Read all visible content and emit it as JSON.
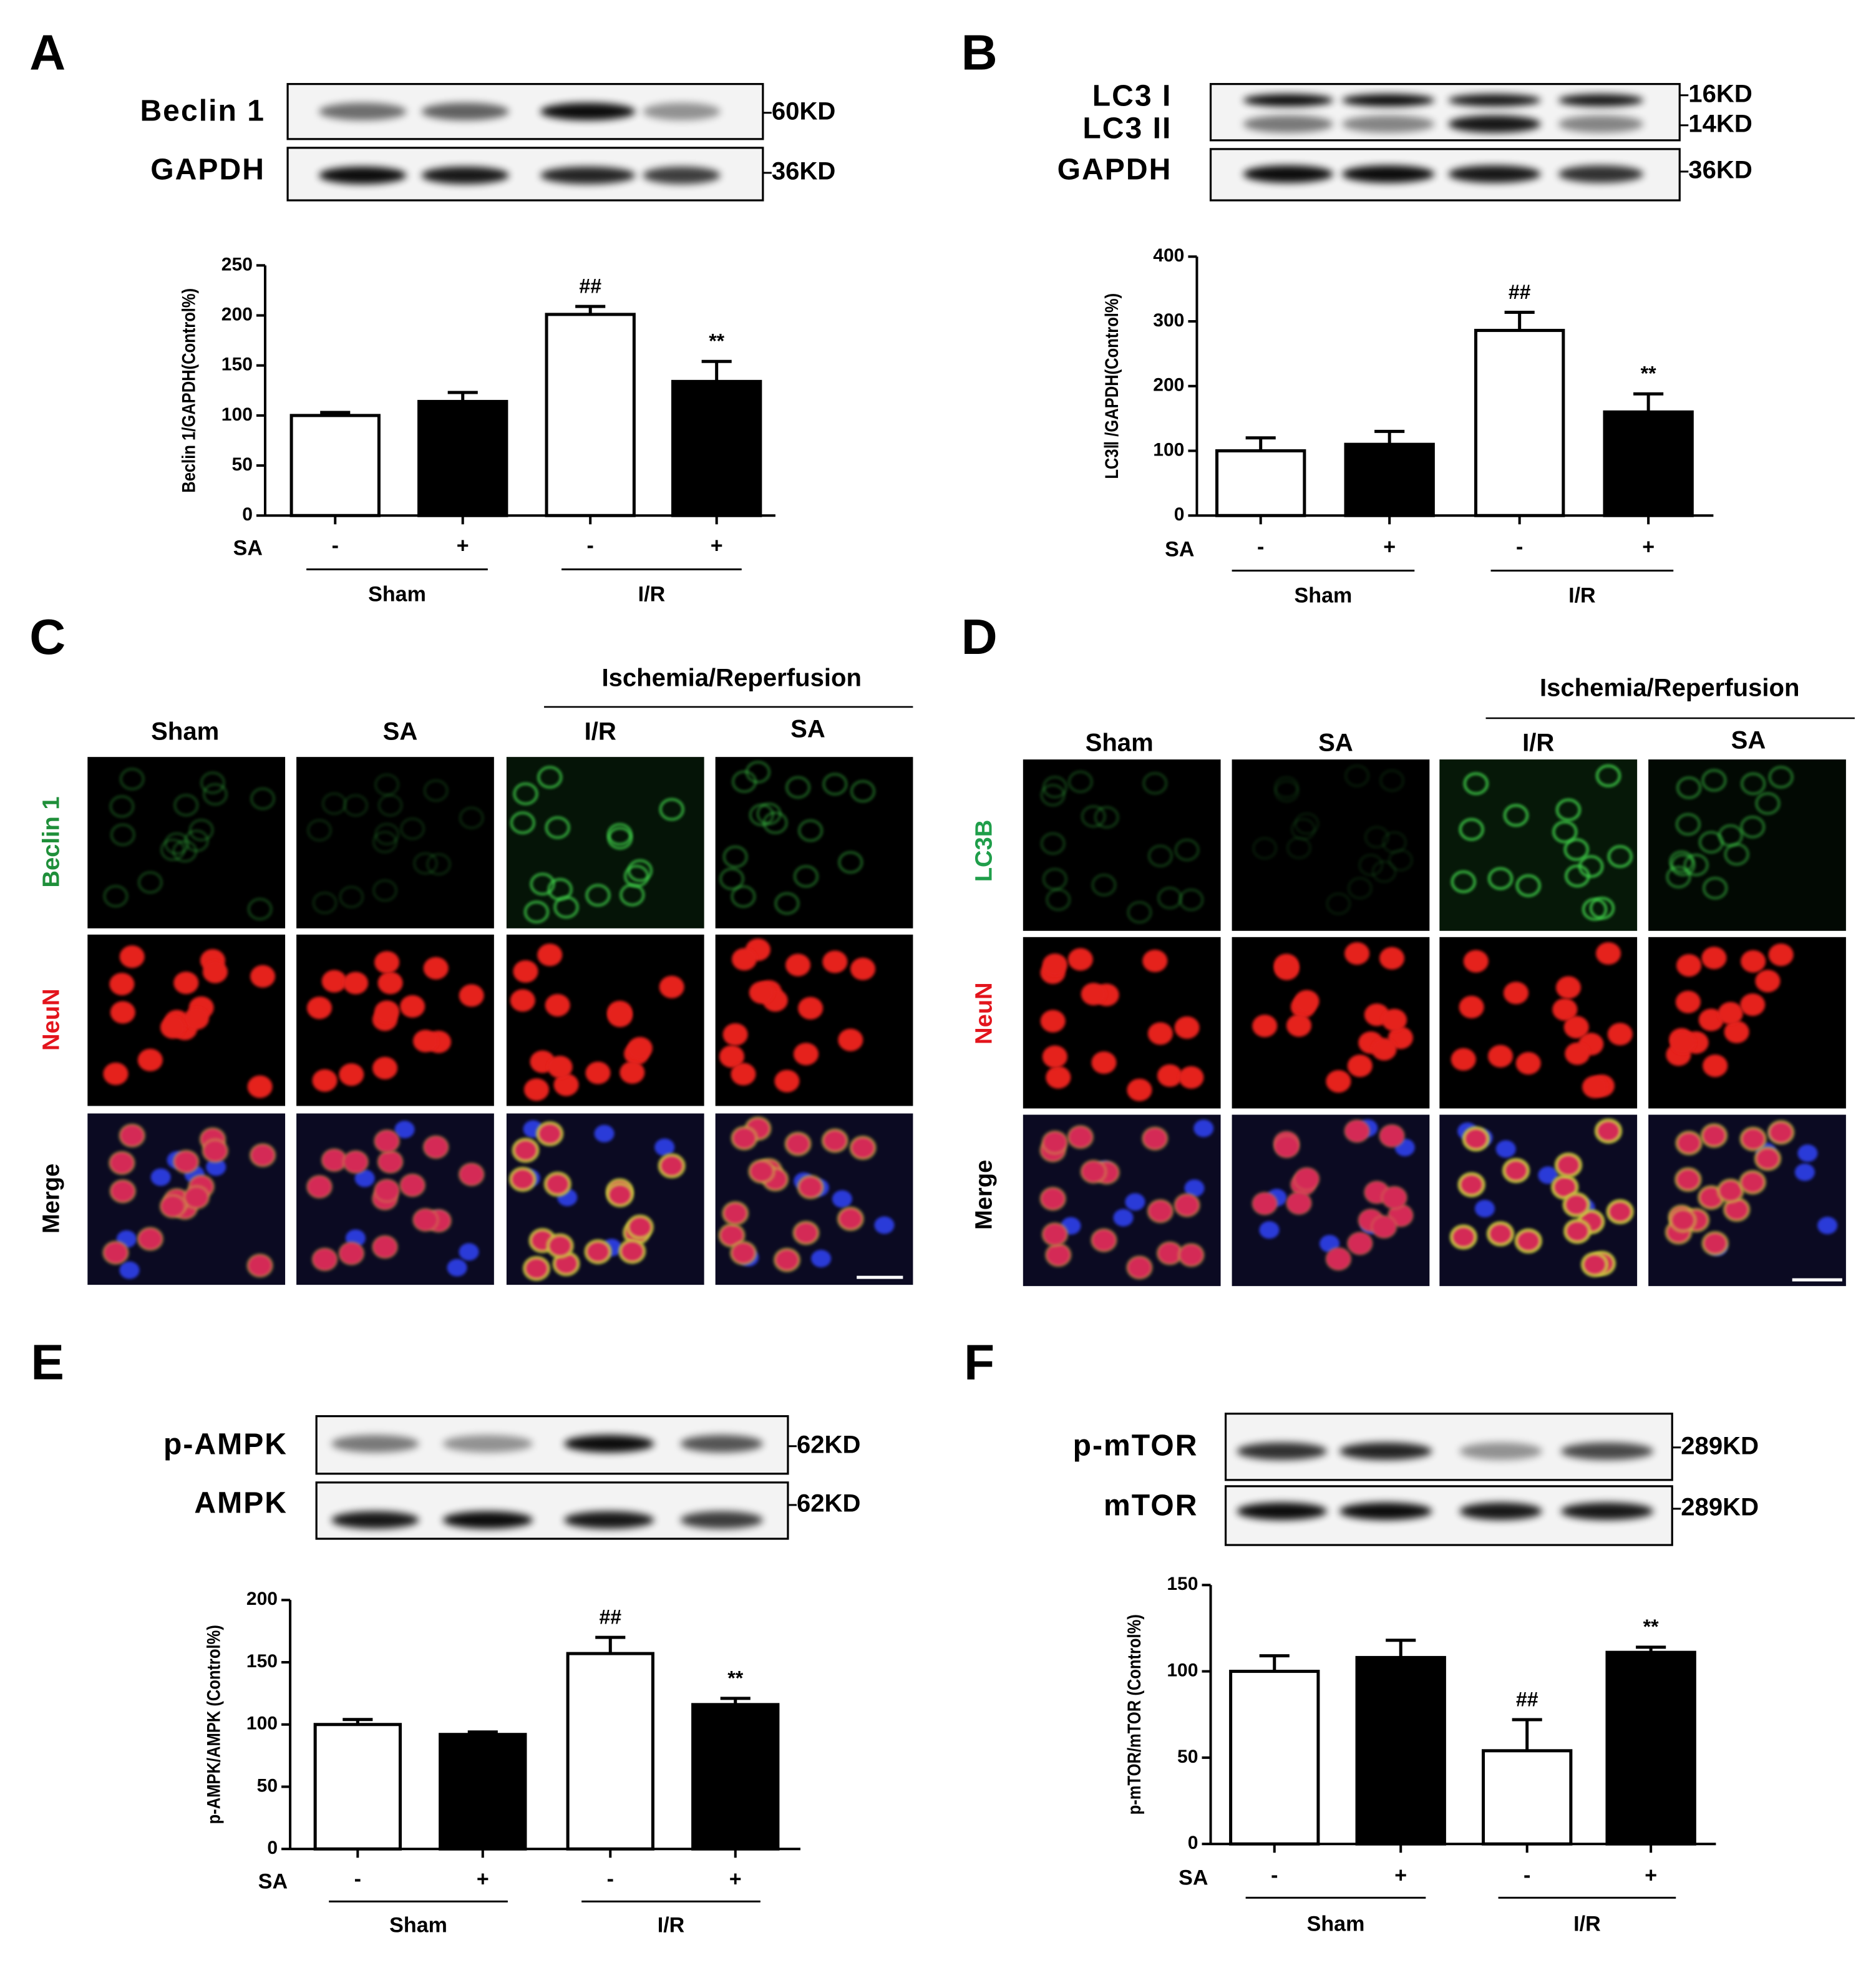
{
  "panels": [
    {
      "letter": "A",
      "blot": {
        "rows": [
          {
            "labels": [
              "Beclin 1"
            ],
            "markers": [
              "60KD"
            ]
          },
          {
            "labels": [
              "GAPDH"
            ],
            "markers": [
              "36KD"
            ]
          }
        ]
      }
    },
    {
      "letter": "B",
      "blot": {
        "rows": [
          {
            "labels": [
              "LC3 I",
              "LC3 II"
            ],
            "markers": [
              "16KD",
              "14KD"
            ]
          },
          {
            "labels": [
              "GAPDH"
            ],
            "markers": [
              "36KD"
            ]
          }
        ]
      }
    },
    {
      "letter": "C",
      "stain": {
        "header": "Ischemia/Reperfusion",
        "columns": [
          "Sham",
          "SA",
          "I/R",
          "SA"
        ],
        "rows": [
          "Beclin 1",
          "NeuN",
          "Merge"
        ],
        "row_colors": [
          "#1f8f3a",
          "#e3141c",
          "#000000"
        ]
      }
    },
    {
      "letter": "D",
      "stain": {
        "header": "Ischemia/Reperfusion",
        "columns": [
          "Sham",
          "SA",
          "I/R",
          "SA"
        ],
        "rows": [
          "LC3B",
          "NeuN",
          "Merge"
        ],
        "row_colors": [
          "#1f9e4a",
          "#e3141c",
          "#000000"
        ]
      }
    },
    {
      "letter": "E",
      "blot": {
        "rows": [
          {
            "labels": [
              "p-AMPK"
            ],
            "markers": [
              "62KD"
            ]
          },
          {
            "labels": [
              "AMPK"
            ],
            "markers": [
              "62KD"
            ]
          }
        ]
      }
    },
    {
      "letter": "F",
      "blot": {
        "rows": [
          {
            "labels": [
              "p-mTOR"
            ],
            "markers": [
              "289KD"
            ]
          },
          {
            "labels": [
              "mTOR"
            ],
            "markers": [
              "289KD"
            ]
          }
        ]
      }
    }
  ],
  "chart_data": [
    {
      "type": "bar",
      "y_label": "Beclin 1/GAPDH(Control%)",
      "x_label": "SA",
      "categories": [
        "-",
        "+",
        "-",
        "+"
      ],
      "groups": [
        "Sham",
        "I/R"
      ],
      "values": [
        100,
        114,
        201,
        134
      ],
      "errors": [
        3,
        9,
        8,
        20
      ],
      "value_annotations": [
        null,
        null,
        "##",
        "**"
      ],
      "colors": [
        "#ffffff",
        "#000000",
        "#ffffff",
        "#000000"
      ],
      "ylim": [
        0,
        250
      ],
      "yticks": [
        0,
        50,
        100,
        150,
        200,
        250
      ]
    },
    {
      "type": "bar",
      "y_label": "LC3Ⅱ /GAPDH(Control%)",
      "x_label": "SA",
      "categories": [
        "-",
        "+",
        "-",
        "+"
      ],
      "groups": [
        "Sham",
        "I/R"
      ],
      "values": [
        100,
        110,
        286,
        160
      ],
      "errors": [
        20,
        20,
        28,
        28
      ],
      "value_annotations": [
        null,
        null,
        "##",
        "**"
      ],
      "colors": [
        "#ffffff",
        "#000000",
        "#ffffff",
        "#000000"
      ],
      "ylim": [
        0,
        400
      ],
      "yticks": [
        0,
        100,
        200,
        300,
        400
      ]
    },
    {
      "type": "bar",
      "y_label": "p-AMPK/AMPK (Control%)",
      "x_label": "SA",
      "categories": [
        "-",
        "+",
        "-",
        "+"
      ],
      "groups": [
        "Sham",
        "I/R"
      ],
      "values": [
        100,
        92,
        157,
        116
      ],
      "errors": [
        4,
        2,
        13,
        5
      ],
      "value_annotations": [
        null,
        null,
        "##",
        "**"
      ],
      "colors": [
        "#ffffff",
        "#000000",
        "#ffffff",
        "#000000"
      ],
      "ylim": [
        0,
        200
      ],
      "yticks": [
        0,
        50,
        100,
        150,
        200
      ]
    },
    {
      "type": "bar",
      "y_label": "p-mTOR/mTOR (Control%)",
      "x_label": "SA",
      "categories": [
        "-",
        "+",
        "-",
        "+"
      ],
      "groups": [
        "Sham",
        "I/R"
      ],
      "values": [
        100,
        108,
        54,
        111
      ],
      "errors": [
        9,
        10,
        18,
        3
      ],
      "value_annotations": [
        null,
        null,
        "##",
        "**"
      ],
      "colors": [
        "#ffffff",
        "#000000",
        "#ffffff",
        "#000000"
      ],
      "ylim": [
        0,
        150
      ],
      "yticks": [
        0,
        50,
        100,
        150
      ]
    }
  ]
}
